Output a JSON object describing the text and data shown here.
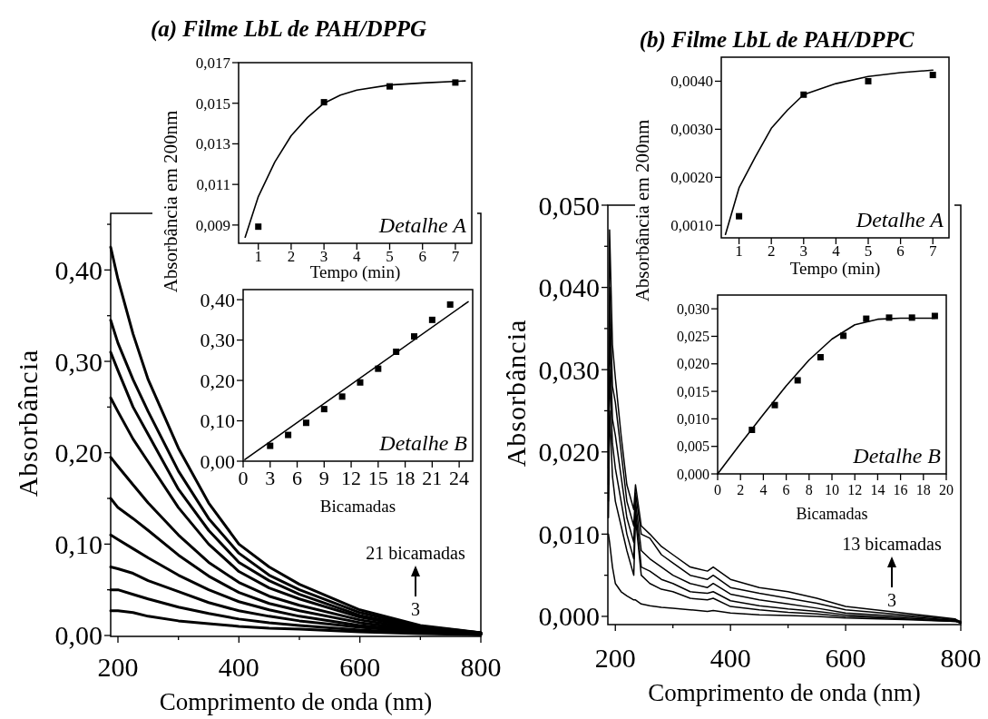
{
  "chart_data": [
    {
      "type": "line",
      "title": "(a) Filme LbL de PAH/DPPG",
      "xlabel": "Comprimento de onda (nm)",
      "ylabel": "Absorbância",
      "xlim": [
        188,
        800
      ],
      "ylim": [
        -0.001,
        0.462
      ],
      "xticks": [
        200,
        {
          "value": 300,
          "label": null
        },
        400,
        {
          "value": 500,
          "label": null
        },
        600,
        {
          "value": 700,
          "label": null
        },
        800
      ],
      "yticks": [
        {
          "value": 0,
          "label": "0,00"
        },
        {
          "value": 0.05,
          "label": null
        },
        {
          "value": 0.1,
          "label": "0,10"
        },
        {
          "value": 0.15,
          "label": null
        },
        {
          "value": 0.2,
          "label": "0,20"
        },
        {
          "value": 0.25,
          "label": null
        },
        {
          "value": 0.3,
          "label": "0,30"
        },
        {
          "value": 0.35,
          "label": null
        },
        {
          "value": 0.4,
          "label": "0,40"
        },
        {
          "value": 0.45,
          "label": null
        }
      ],
      "x": [
        188,
        200,
        225,
        250,
        300,
        350,
        400,
        450,
        500,
        600,
        700,
        800
      ],
      "series": [
        {
          "color": "#000000",
          "values": [
            0.027,
            0.027,
            0.025,
            0.021,
            0.016,
            0.013,
            0.01,
            0.008,
            0.007,
            0.004,
            0.002,
            0.001
          ]
        },
        {
          "color": "#000000",
          "values": [
            0.05,
            0.05,
            0.045,
            0.04,
            0.031,
            0.024,
            0.018,
            0.014,
            0.011,
            0.006,
            0.003,
            0.001
          ]
        },
        {
          "color": "#000000",
          "values": [
            0.075,
            0.073,
            0.068,
            0.06,
            0.048,
            0.036,
            0.027,
            0.021,
            0.016,
            0.009,
            0.004,
            0.001
          ]
        },
        {
          "color": "#000000",
          "values": [
            0.11,
            0.105,
            0.095,
            0.085,
            0.066,
            0.05,
            0.037,
            0.028,
            0.021,
            0.011,
            0.005,
            0.002
          ]
        },
        {
          "color": "#000000",
          "values": [
            0.15,
            0.14,
            0.128,
            0.115,
            0.088,
            0.065,
            0.047,
            0.035,
            0.027,
            0.014,
            0.006,
            0.002
          ]
        },
        {
          "color": "#000000",
          "values": [
            0.195,
            0.185,
            0.165,
            0.145,
            0.11,
            0.08,
            0.058,
            0.043,
            0.033,
            0.017,
            0.007,
            0.002
          ]
        },
        {
          "color": "#000000",
          "values": [
            0.26,
            0.245,
            0.215,
            0.19,
            0.14,
            0.1,
            0.07,
            0.052,
            0.04,
            0.02,
            0.008,
            0.002
          ]
        },
        {
          "color": "#000000",
          "values": [
            0.31,
            0.29,
            0.25,
            0.22,
            0.16,
            0.115,
            0.08,
            0.06,
            0.045,
            0.022,
            0.009,
            0.003
          ]
        },
        {
          "color": "#000000",
          "values": [
            0.345,
            0.32,
            0.28,
            0.245,
            0.18,
            0.128,
            0.09,
            0.066,
            0.05,
            0.025,
            0.01,
            0.003
          ]
        },
        {
          "color": "#000000",
          "values": [
            0.425,
            0.39,
            0.33,
            0.28,
            0.205,
            0.145,
            0.1,
            0.075,
            0.056,
            0.028,
            0.011,
            0.003
          ]
        }
      ],
      "annotations": [
        "21 bicamadas",
        "3"
      ]
    },
    {
      "type": "scatter",
      "xlabel": "Tempo (min)",
      "ylabel": "Absorbância em  200nm",
      "xlim": [
        0.4,
        7.5
      ],
      "ylim": [
        0.0081,
        0.017
      ],
      "xticks": [
        1,
        2,
        3,
        4,
        5,
        6,
        7
      ],
      "yticks": [
        {
          "value": 0.009,
          "label": "0,009"
        },
        {
          "value": 0.011,
          "label": "0,011"
        },
        {
          "value": 0.013,
          "label": "0,013"
        },
        {
          "value": 0.015,
          "label": "0,015"
        },
        {
          "value": 0.017,
          "label": "0,017"
        }
      ],
      "series": [
        {
          "marker": "square",
          "color": "#000000",
          "x": [
            1,
            3,
            5,
            7
          ],
          "values": [
            0.00892,
            0.01505,
            0.01583,
            0.01602
          ]
        },
        {
          "type": "line",
          "color": "#000000",
          "x": [
            0.6,
            1,
            1.5,
            2,
            2.5,
            3,
            3.5,
            4,
            5,
            6,
            7.3
          ],
          "values": [
            0.0084,
            0.0104,
            0.0121,
            0.0134,
            0.0143,
            0.015,
            0.0154,
            0.01565,
            0.0159,
            0.016,
            0.0161
          ]
        }
      ],
      "annotations": [
        "Detalhe A"
      ]
    },
    {
      "type": "scatter",
      "xlabel": "Bicamadas",
      "xlim": [
        0,
        25.5
      ],
      "ylim": [
        0,
        0.425
      ],
      "xticks": [
        0,
        3,
        6,
        9,
        12,
        15,
        18,
        21,
        24
      ],
      "yticks": [
        {
          "value": 0,
          "label": "0,00"
        },
        {
          "value": 0.1,
          "label": "0,10"
        },
        {
          "value": 0.2,
          "label": "0,20"
        },
        {
          "value": 0.3,
          "label": "0,30"
        },
        {
          "value": 0.4,
          "label": "0,40"
        }
      ],
      "series": [
        {
          "marker": "square",
          "color": "#000000",
          "x": [
            3,
            5,
            7,
            9,
            11,
            13,
            15,
            17,
            19,
            21,
            23
          ],
          "values": [
            0.038,
            0.065,
            0.095,
            0.129,
            0.16,
            0.195,
            0.229,
            0.271,
            0.309,
            0.35,
            0.388
          ]
        },
        {
          "type": "line",
          "color": "#000000",
          "x": [
            0.2,
            25
          ],
          "values": [
            0.004,
            0.395
          ]
        }
      ],
      "annotations": [
        "Detalhe B"
      ]
    },
    {
      "type": "line",
      "title": "(b) Filme LbL de PAH/DPPC",
      "xlabel": "Comprimento de onda (nm)",
      "ylabel": "Absorbância",
      "xlim": [
        187,
        800
      ],
      "ylim": [
        -0.001,
        0.05
      ],
      "xticks": [
        200,
        {
          "value": 300,
          "label": null
        },
        400,
        {
          "value": 500,
          "label": null
        },
        600,
        {
          "value": 700,
          "label": null
        },
        800
      ],
      "yticks": [
        {
          "value": 0,
          "label": "0,000"
        },
        {
          "value": 0.005,
          "label": null
        },
        {
          "value": 0.01,
          "label": "0,010"
        },
        {
          "value": 0.015,
          "label": null
        },
        {
          "value": 0.02,
          "label": "0,020"
        },
        {
          "value": 0.025,
          "label": null
        },
        {
          "value": 0.03,
          "label": "0,030"
        },
        {
          "value": 0.035,
          "label": null
        },
        {
          "value": 0.04,
          "label": "0,040"
        },
        {
          "value": 0.045,
          "label": null
        },
        {
          "value": 0.05,
          "label": "0,050"
        }
      ],
      "x": [
        188,
        190,
        195,
        200,
        210,
        220,
        232,
        235,
        245,
        260,
        280,
        300,
        330,
        360,
        370,
        400,
        450,
        500,
        550,
        600,
        700,
        790,
        800
      ],
      "series": [
        {
          "color": "#000000",
          "values": [
            0.01,
            0.009,
            0.006,
            0.004,
            0.003,
            0.0025,
            0.002,
            0.002,
            0.0015,
            0.0013,
            0.0011,
            0.001,
            0.0008,
            0.0006,
            0.0007,
            0.0004,
            0.0002,
            0.0001,
            0.0,
            -0.0002,
            -0.0004,
            -0.0006,
            -0.0008
          ]
        },
        {
          "color": "#000000",
          "values": [
            0.012,
            0.025,
            0.017,
            0.014,
            0.011,
            0.008,
            0.005,
            0.012,
            0.005,
            0.004,
            0.0033,
            0.003,
            0.0022,
            0.002,
            0.0022,
            0.0012,
            0.0008,
            0.0005,
            0.0003,
            0.0,
            -0.0003,
            -0.0006,
            -0.0008
          ]
        },
        {
          "color": "#000000",
          "values": [
            0.014,
            0.03,
            0.021,
            0.018,
            0.014,
            0.01,
            0.007,
            0.013,
            0.006,
            0.0055,
            0.0045,
            0.004,
            0.003,
            0.0028,
            0.003,
            0.0019,
            0.0013,
            0.0009,
            0.0006,
            0.0002,
            -0.0002,
            -0.0005,
            -0.0007
          ]
        },
        {
          "color": "#000000",
          "values": [
            0.016,
            0.035,
            0.024,
            0.022,
            0.017,
            0.012,
            0.009,
            0.014,
            0.008,
            0.007,
            0.006,
            0.005,
            0.004,
            0.0035,
            0.004,
            0.0027,
            0.002,
            0.0015,
            0.001,
            0.0004,
            0.0,
            -0.0005,
            -0.0008
          ]
        },
        {
          "color": "#000000",
          "values": [
            0.018,
            0.04,
            0.028,
            0.026,
            0.02,
            0.014,
            0.011,
            0.015,
            0.01,
            0.0095,
            0.0075,
            0.0065,
            0.005,
            0.0045,
            0.005,
            0.0035,
            0.0028,
            0.0022,
            0.0016,
            0.0008,
            0.0002,
            -0.0004,
            -0.0006
          ]
        },
        {
          "color": "#000000",
          "values": [
            0.02,
            0.047,
            0.033,
            0.029,
            0.022,
            0.016,
            0.013,
            0.016,
            0.011,
            0.01,
            0.0085,
            0.0075,
            0.006,
            0.0055,
            0.006,
            0.0045,
            0.0035,
            0.003,
            0.0022,
            0.0012,
            0.0004,
            -0.0003,
            -0.0008
          ]
        }
      ],
      "annotations": [
        "13 bicamadas",
        "3"
      ]
    },
    {
      "type": "scatter",
      "xlabel": "Tempo (min)",
      "ylabel": "Absorbância em  200nm",
      "xlim": [
        0.45,
        7.5
      ],
      "ylim": [
        0.00074,
        0.0045
      ],
      "xticks": [
        1,
        2,
        3,
        4,
        5,
        6,
        7
      ],
      "yticks": [
        {
          "value": 0.001,
          "label": "0,0010"
        },
        {
          "value": 0.002,
          "label": "0,0020"
        },
        {
          "value": 0.003,
          "label": "0,0030"
        },
        {
          "value": 0.004,
          "label": "0,0040"
        }
      ],
      "series": [
        {
          "marker": "square",
          "color": "#000000",
          "x": [
            1,
            3,
            5,
            7
          ],
          "values": [
            0.00119,
            0.00372,
            0.004,
            0.00413
          ]
        },
        {
          "type": "line",
          "color": "#000000",
          "x": [
            0.58,
            1,
            1.5,
            2,
            2.5,
            3,
            4,
            5,
            6,
            7
          ],
          "values": [
            0.00081,
            0.00178,
            0.00242,
            0.00302,
            0.0034,
            0.00372,
            0.00395,
            0.0041,
            0.00418,
            0.00423
          ]
        }
      ],
      "annotations": [
        "Detalhe A"
      ]
    },
    {
      "type": "scatter",
      "xlabel": "Bicamadas",
      "xlim": [
        0,
        20
      ],
      "ylim": [
        0,
        0.0325
      ],
      "xticks": [
        0,
        2,
        4,
        6,
        8,
        10,
        12,
        14,
        16,
        18,
        20
      ],
      "yticks": [
        {
          "value": 0,
          "label": "0,000"
        },
        {
          "value": 0.005,
          "label": "0,005"
        },
        {
          "value": 0.01,
          "label": "0,010"
        },
        {
          "value": 0.015,
          "label": "0,015"
        },
        {
          "value": 0.02,
          "label": "0,020"
        },
        {
          "value": 0.025,
          "label": "0,025"
        },
        {
          "value": 0.03,
          "label": "0,030"
        }
      ],
      "series": [
        {
          "marker": "square",
          "color": "#000000",
          "x": [
            3,
            5,
            7,
            9,
            11,
            13,
            15,
            17,
            19
          ],
          "values": [
            0.008,
            0.0125,
            0.017,
            0.0212,
            0.0251,
            0.0282,
            0.0284,
            0.0284,
            0.0287
          ]
        },
        {
          "type": "line",
          "color": "#000000",
          "x": [
            0,
            2,
            4,
            6,
            8,
            10,
            12,
            14,
            16,
            19
          ],
          "values": [
            0,
            0.0055,
            0.0108,
            0.016,
            0.0207,
            0.0245,
            0.0271,
            0.0281,
            0.0283,
            0.0283
          ]
        }
      ],
      "annotations": [
        "Detalhe B"
      ]
    }
  ]
}
